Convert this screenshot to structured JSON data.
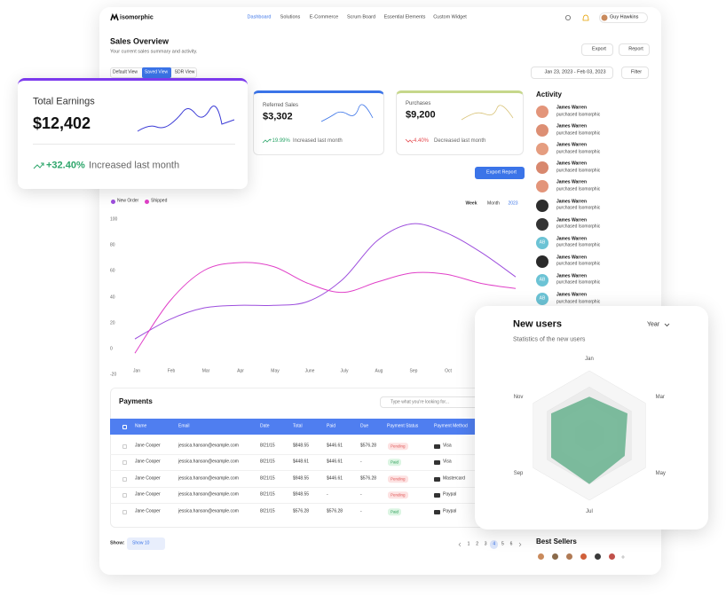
{
  "nav": {
    "logo": "isomorphic",
    "items": [
      "Dashboard",
      "Solutions",
      "E-Commerce",
      "Scrum Board",
      "Essential Elements",
      "Custom Widget"
    ],
    "user": "Guy Hawkins"
  },
  "header": {
    "title": "Sales Overview",
    "subtitle": "Your current sales summary and activity.",
    "buttons": [
      "Export",
      "Report"
    ],
    "views": [
      "Default View",
      "Saved View",
      "SDR View"
    ],
    "date_range": "Jan 23, 2023 - Feb 03, 2023",
    "filter": "Filter"
  },
  "stats": [
    {
      "label": "Total Earnings",
      "value": "$12,402",
      "change": "+32.40%",
      "note": "Increased last month"
    },
    {
      "label": "Referred Sales",
      "value": "$3,302",
      "change": "+19.99%",
      "note": "Increased last month"
    },
    {
      "label": "Purchases",
      "value": "$9,200",
      "change": "-4.40%",
      "note": "Decreased last month"
    }
  ],
  "export_button": "Export Report",
  "chart_data": [
    {
      "type": "line",
      "period_options": [
        "Week",
        "Month",
        "2023"
      ],
      "categories": [
        "Jan",
        "Feb",
        "Mar",
        "Apr",
        "May",
        "June",
        "July",
        "Aug",
        "Sep",
        "Oct",
        null,
        null
      ],
      "series": [
        {
          "name": "New Order",
          "color": "#9d4edd",
          "values": [
            8,
            23,
            32,
            34,
            34,
            37,
            54,
            84,
            97,
            90,
            75,
            56
          ]
        },
        {
          "name": "Shipped",
          "color": "#e040c8",
          "values": [
            -3,
            37,
            61,
            67,
            64,
            51,
            44,
            52,
            59,
            58,
            51,
            47
          ]
        }
      ],
      "ylim": [
        -20,
        100
      ],
      "yticks": [
        100,
        80,
        60,
        40,
        20,
        0,
        -20
      ],
      "grid": false
    },
    {
      "type": "radar",
      "title": "New users",
      "subtitle": "Statistics of the new users",
      "period": "Year",
      "categories": [
        "Jan",
        "Mar",
        "May",
        "Jul",
        "Sep",
        "Nov"
      ],
      "values": [
        0.6,
        0.68,
        0.63,
        0.75,
        0.68,
        0.68
      ],
      "color": "#6fb594"
    }
  ],
  "activity": {
    "title": "Activity",
    "items": [
      {
        "name": "James Warren",
        "action": "purchased Isomorphic"
      },
      {
        "name": "James Warren",
        "action": "purchased Isomorphic"
      },
      {
        "name": "James Warren",
        "action": "purchased Isomorphic"
      },
      {
        "name": "James Warren",
        "action": "purchased Isomorphic"
      },
      {
        "name": "James Warren",
        "action": "purchased Isomorphic"
      },
      {
        "name": "James Warren",
        "action": "purchased Isomorphic"
      },
      {
        "name": "James Warren",
        "action": "purchased Isomorphic"
      },
      {
        "name": "James Warren",
        "action": "purchased Isomorphic",
        "initials": "AB"
      },
      {
        "name": "James Warren",
        "action": "purchased Isomorphic"
      },
      {
        "name": "James Warren",
        "action": "purchased Isomorphic",
        "initials": "AB"
      },
      {
        "name": "James Warren",
        "action": "purchased Isomorphic",
        "initials": "AB"
      }
    ]
  },
  "payments": {
    "title": "Payments",
    "search_placeholder": "Type what you're looking for...",
    "columns": [
      "Name",
      "Email",
      "Date",
      "Total",
      "Paid",
      "Due",
      "Payment Status",
      "Payment Method"
    ],
    "rows": [
      [
        "Jane Cooper",
        "jessica.hanson@example.com",
        "8/21/15",
        "$848.55",
        "$446.61",
        "$576.28",
        "Pending",
        "Visa"
      ],
      [
        "Jane Cooper",
        "jessica.hanson@example.com",
        "8/21/15",
        "$448.61",
        "$446.61",
        "-",
        "Paid",
        "Visa"
      ],
      [
        "Jane Cooper",
        "jessica.hanson@example.com",
        "8/21/15",
        "$948.55",
        "$446.61",
        "$576.28",
        "Pending",
        "Mastercard"
      ],
      [
        "Jane Cooper",
        "jessica.hanson@example.com",
        "8/21/15",
        "$948.55",
        "-",
        "-",
        "Pending",
        "Paypal"
      ],
      [
        "Jane Cooper",
        "jessica.hanson@example.com",
        "8/21/15",
        "$576.28",
        "$576.28",
        "-",
        "Paid",
        "Paypal"
      ]
    ],
    "show_label": "Show:",
    "page_size": "Show 10",
    "pages": [
      1,
      2,
      3,
      4,
      5,
      6
    ],
    "current_page": 4
  },
  "best_sellers": {
    "title": "Best Sellers"
  }
}
